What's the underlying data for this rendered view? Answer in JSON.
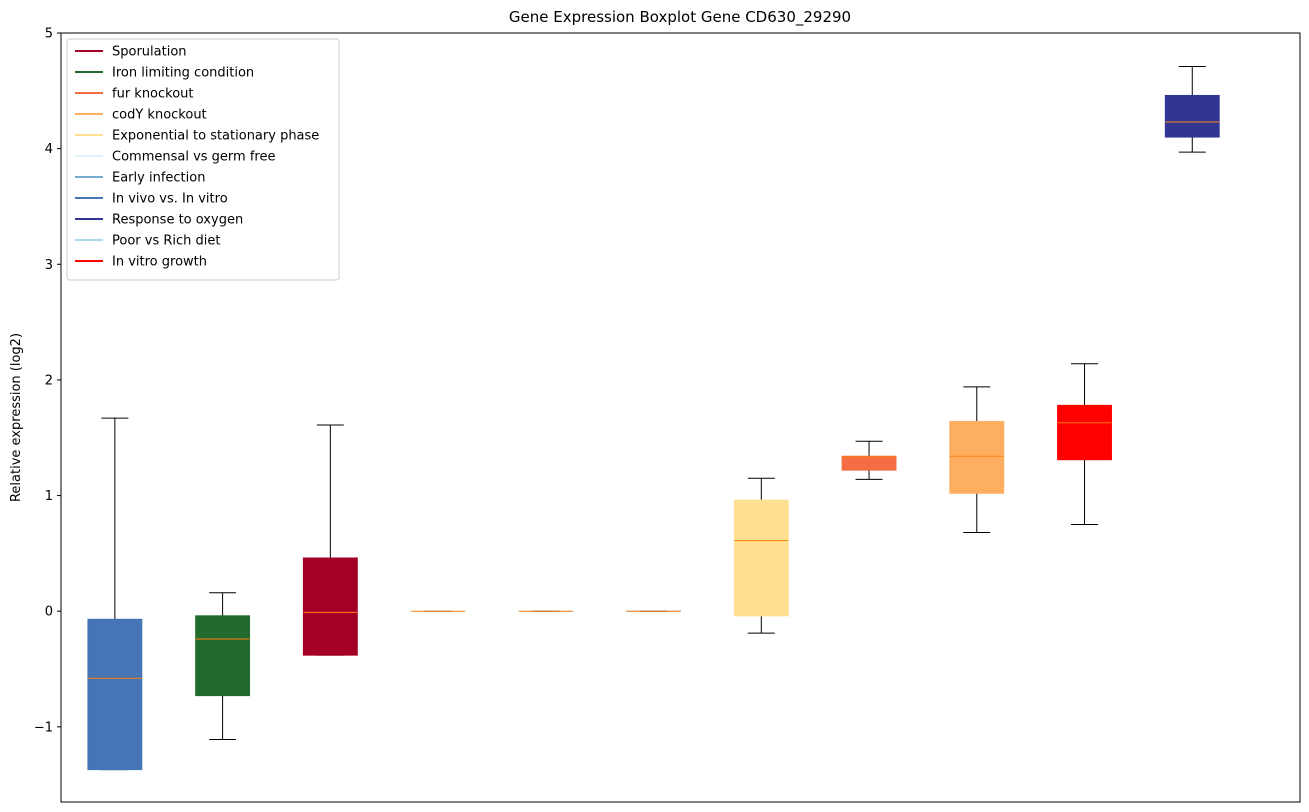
{
  "chart_data": {
    "type": "box",
    "title": "Gene Expression Boxplot Gene CD630_29290",
    "xlabel": "",
    "ylabel": "Relative expression (log2)",
    "ylim": [
      -1.65,
      5.0
    ],
    "yticks": [
      {
        "value": -1,
        "label": "−1"
      },
      {
        "value": 0,
        "label": "0"
      },
      {
        "value": 1,
        "label": "1"
      },
      {
        "value": 2,
        "label": "2"
      },
      {
        "value": 3,
        "label": "3"
      },
      {
        "value": 4,
        "label": "4"
      },
      {
        "value": 5,
        "label": "5"
      }
    ],
    "grid": false,
    "legend_position": "top-left",
    "median_color": "#ff7f0e",
    "legend": [
      {
        "label": "Sporulation",
        "color": "#a50026"
      },
      {
        "label": "Iron limiting condition",
        "color": "#226b2f"
      },
      {
        "label": "fur knockout",
        "color": "#f46d43"
      },
      {
        "label": "codY knockout",
        "color": "#fdae61"
      },
      {
        "label": "Exponential to stationary phase",
        "color": "#fee090"
      },
      {
        "label": "Commensal vs germ free",
        "color": "#e0f3f8"
      },
      {
        "label": "Early infection",
        "color": "#74add1"
      },
      {
        "label": "In vivo vs. In vitro",
        "color": "#4575b4"
      },
      {
        "label": "Response to oxygen",
        "color": "#313695"
      },
      {
        "label": "Poor vs Rich diet",
        "color": "#abd9e9"
      },
      {
        "label": "In vitro growth",
        "color": "#ff0000"
      }
    ],
    "boxes": [
      {
        "color": "#4575b4",
        "whisker_low": -1.37,
        "q1": -1.37,
        "median": -0.58,
        "q3": -0.07,
        "whisker_high": 1.67
      },
      {
        "color": "#226b2f",
        "whisker_low": -1.11,
        "q1": -0.73,
        "median": -0.24,
        "q3": -0.04,
        "whisker_high": 0.16
      },
      {
        "color": "#a50026",
        "whisker_low": -0.38,
        "q1": -0.38,
        "median": -0.01,
        "q3": 0.46,
        "whisker_high": 1.61
      },
      {
        "color": "#e0f3f8",
        "whisker_low": 0.0,
        "q1": 0.0,
        "median": 0.0,
        "q3": 0.0,
        "whisker_high": 0.0
      },
      {
        "color": "#abd9e9",
        "whisker_low": 0.0,
        "q1": 0.0,
        "median": 0.0,
        "q3": 0.0,
        "whisker_high": 0.0
      },
      {
        "color": "#74add1",
        "whisker_low": 0.0,
        "q1": 0.0,
        "median": 0.0,
        "q3": 0.0,
        "whisker_high": 0.0
      },
      {
        "color": "#fee090",
        "whisker_low": -0.19,
        "q1": -0.04,
        "median": 0.61,
        "q3": 0.96,
        "whisker_high": 1.15
      },
      {
        "color": "#f46d43",
        "whisker_low": 1.14,
        "q1": 1.22,
        "median": 1.33,
        "q3": 1.34,
        "whisker_high": 1.47
      },
      {
        "color": "#fdae61",
        "whisker_low": 0.68,
        "q1": 1.02,
        "median": 1.34,
        "q3": 1.64,
        "whisker_high": 1.94
      },
      {
        "color": "#ff0000",
        "whisker_low": 0.75,
        "q1": 1.31,
        "median": 1.63,
        "q3": 1.78,
        "whisker_high": 2.14
      },
      {
        "color": "#313695",
        "whisker_low": 3.97,
        "q1": 4.1,
        "median": 4.23,
        "q3": 4.46,
        "whisker_high": 4.71
      }
    ]
  }
}
